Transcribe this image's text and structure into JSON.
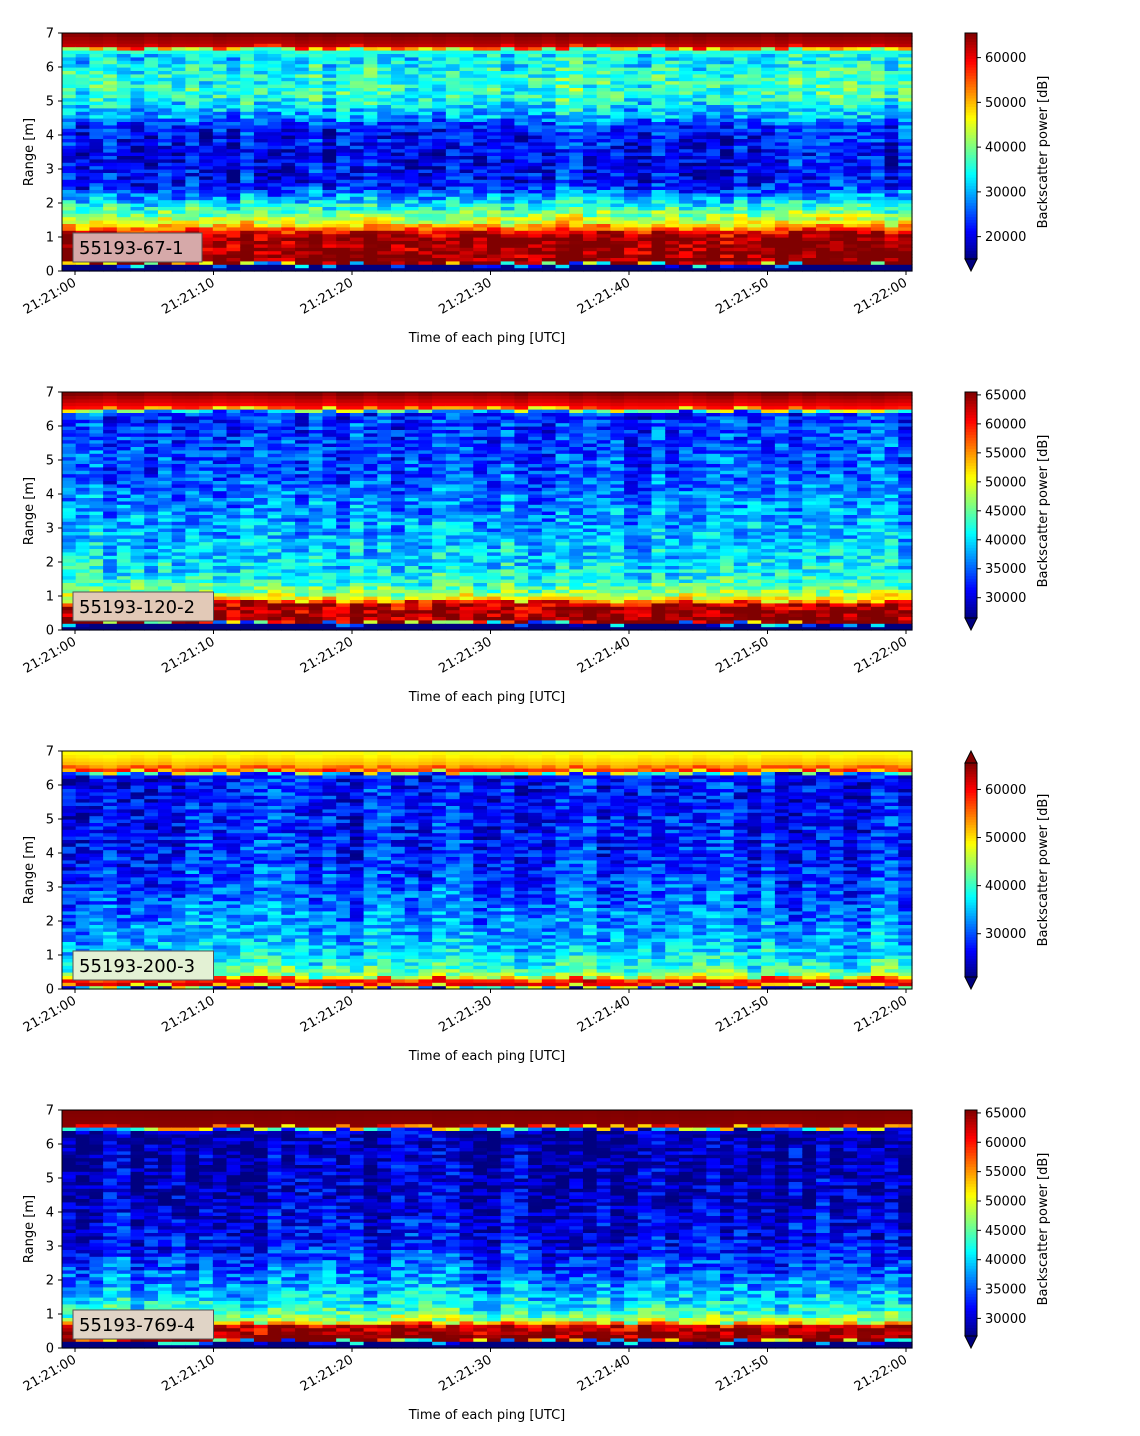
{
  "chart_data": [
    {
      "type": "heatmap",
      "panel_label": "55193-67-1",
      "label_bg": "#d6a9a9",
      "xlabel": "Time of each ping [UTC]",
      "ylabel": "Range [m]",
      "x_ticks": [
        "21:21:00",
        "21:21:10",
        "21:21:20",
        "21:21:30",
        "21:21:40",
        "21:21:50",
        "21:22:00"
      ],
      "y_ticks": [
        0,
        1,
        2,
        3,
        4,
        5,
        6,
        7
      ],
      "ylim": [
        0,
        7
      ],
      "colorbar": {
        "label": "Backscatter power [dB]",
        "colormap": "jet",
        "vmin": 15000,
        "vmax": 65500,
        "ticks": [
          20000,
          30000,
          40000,
          50000,
          60000
        ],
        "extend_top": false,
        "extend_bottom": true
      },
      "profile": [
        {
          "range_m": 0.0,
          "value": 15000
        },
        {
          "range_m": 0.18,
          "value": 15000
        },
        {
          "range_m": 0.25,
          "value": 65500
        },
        {
          "range_m": 1.05,
          "value": 65000
        },
        {
          "range_m": 1.2,
          "value": 58000
        },
        {
          "range_m": 1.4,
          "value": 47000
        },
        {
          "range_m": 1.8,
          "value": 38000
        },
        {
          "range_m": 2.2,
          "value": 29000
        },
        {
          "range_m": 2.6,
          "value": 22000
        },
        {
          "range_m": 3.5,
          "value": 21000
        },
        {
          "range_m": 4.2,
          "value": 23000
        },
        {
          "range_m": 4.6,
          "value": 30000
        },
        {
          "range_m": 5.2,
          "value": 37000
        },
        {
          "range_m": 5.8,
          "value": 36000
        },
        {
          "range_m": 6.3,
          "value": 33000
        },
        {
          "range_m": 6.5,
          "value": 36000
        },
        {
          "range_m": 6.62,
          "value": 62000
        },
        {
          "range_m": 7.0,
          "value": 65500
        }
      ]
    },
    {
      "type": "heatmap",
      "panel_label": "55193-120-2",
      "label_bg": "#e2c9b7",
      "xlabel": "Time of each ping [UTC]",
      "ylabel": "Range [m]",
      "x_ticks": [
        "21:21:00",
        "21:21:10",
        "21:21:20",
        "21:21:30",
        "21:21:40",
        "21:21:50",
        "21:22:00"
      ],
      "y_ticks": [
        0,
        1,
        2,
        3,
        4,
        5,
        6,
        7
      ],
      "ylim": [
        0,
        7
      ],
      "colorbar": {
        "label": "Backscatter power [dB]",
        "colormap": "jet",
        "vmin": 26500,
        "vmax": 65500,
        "ticks": [
          30000,
          35000,
          40000,
          45000,
          50000,
          55000,
          60000,
          65000
        ],
        "extend_top": false,
        "extend_bottom": true
      },
      "profile": [
        {
          "range_m": 0.0,
          "value": 26500
        },
        {
          "range_m": 0.18,
          "value": 26500
        },
        {
          "range_m": 0.25,
          "value": 65500
        },
        {
          "range_m": 0.78,
          "value": 63000
        },
        {
          "range_m": 0.9,
          "value": 52000
        },
        {
          "range_m": 1.2,
          "value": 45000
        },
        {
          "range_m": 1.6,
          "value": 41000
        },
        {
          "range_m": 2.5,
          "value": 39000
        },
        {
          "range_m": 3.5,
          "value": 37000
        },
        {
          "range_m": 4.5,
          "value": 35000
        },
        {
          "range_m": 5.5,
          "value": 34000
        },
        {
          "range_m": 6.4,
          "value": 33000
        },
        {
          "range_m": 6.55,
          "value": 60000
        },
        {
          "range_m": 7.0,
          "value": 65500
        }
      ]
    },
    {
      "type": "heatmap",
      "panel_label": "55193-200-3",
      "label_bg": "#e3f1d4",
      "xlabel": "Time of each ping [UTC]",
      "ylabel": "Range [m]",
      "x_ticks": [
        "21:21:00",
        "21:21:10",
        "21:21:20",
        "21:21:30",
        "21:21:40",
        "21:21:50",
        "21:22:00"
      ],
      "y_ticks": [
        0,
        1,
        2,
        3,
        4,
        5,
        6,
        7
      ],
      "ylim": [
        0,
        7
      ],
      "colorbar": {
        "label": "Backscatter power [dB]",
        "colormap": "jet",
        "vmin": 21000,
        "vmax": 65500,
        "ticks": [
          30000,
          40000,
          50000,
          60000
        ],
        "extend_top": true,
        "extend_bottom": true
      },
      "profile": [
        {
          "range_m": 0.0,
          "value": 21000
        },
        {
          "range_m": 0.15,
          "value": 63000
        },
        {
          "range_m": 0.3,
          "value": 57000
        },
        {
          "range_m": 0.4,
          "value": 44000
        },
        {
          "range_m": 0.8,
          "value": 38000
        },
        {
          "range_m": 1.5,
          "value": 34000
        },
        {
          "range_m": 2.5,
          "value": 31000
        },
        {
          "range_m": 4.0,
          "value": 28000
        },
        {
          "range_m": 5.5,
          "value": 27000
        },
        {
          "range_m": 6.3,
          "value": 27000
        },
        {
          "range_m": 6.45,
          "value": 60000
        },
        {
          "range_m": 6.6,
          "value": 52000
        },
        {
          "range_m": 7.0,
          "value": 48000
        }
      ]
    },
    {
      "type": "heatmap",
      "panel_label": "55193-769-4",
      "label_bg": "#e0d4c6",
      "xlabel": "Time of each ping [UTC]",
      "ylabel": "Range [m]",
      "x_ticks": [
        "21:21:00",
        "21:21:10",
        "21:21:20",
        "21:21:30",
        "21:21:40",
        "21:21:50",
        "21:22:00"
      ],
      "y_ticks": [
        0,
        1,
        2,
        3,
        4,
        5,
        6,
        7
      ],
      "ylim": [
        0,
        7
      ],
      "colorbar": {
        "label": "Backscatter power [dB]",
        "colormap": "jet",
        "vmin": 27000,
        "vmax": 65500,
        "ticks": [
          30000,
          35000,
          40000,
          45000,
          50000,
          55000,
          60000,
          65000
        ],
        "extend_top": false,
        "extend_bottom": true
      },
      "profile": [
        {
          "range_m": 0.0,
          "value": 27000
        },
        {
          "range_m": 0.18,
          "value": 27000
        },
        {
          "range_m": 0.25,
          "value": 65500
        },
        {
          "range_m": 0.65,
          "value": 64000
        },
        {
          "range_m": 0.8,
          "value": 48000
        },
        {
          "range_m": 1.2,
          "value": 42000
        },
        {
          "range_m": 2.0,
          "value": 37000
        },
        {
          "range_m": 3.0,
          "value": 32000
        },
        {
          "range_m": 4.5,
          "value": 29500
        },
        {
          "range_m": 6.4,
          "value": 29000
        },
        {
          "range_m": 6.55,
          "value": 65000
        },
        {
          "range_m": 7.0,
          "value": 65500
        }
      ]
    }
  ]
}
